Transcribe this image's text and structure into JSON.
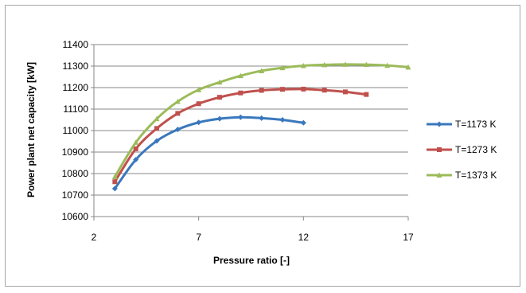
{
  "chart_data": {
    "type": "line",
    "title": "",
    "xlabel": "Pressure ratio [-]",
    "ylabel": "Power plant net capacity  [kW]",
    "xlim": [
      2,
      17
    ],
    "ylim": [
      10600,
      11400
    ],
    "xticks": [
      2,
      7,
      12,
      17
    ],
    "yticks": [
      10600,
      10700,
      10800,
      10900,
      11000,
      11100,
      11200,
      11300,
      11400
    ],
    "grid": "horizontal",
    "legend_position": "right",
    "series": [
      {
        "name": "T=1173 K",
        "color": "#3a78bd",
        "marker": "diamond",
        "x": [
          3,
          4,
          5,
          6,
          7,
          8,
          9,
          10,
          11,
          12
        ],
        "y": [
          10730,
          10865,
          10952,
          11005,
          11038,
          11055,
          11062,
          11058,
          11050,
          11036
        ]
      },
      {
        "name": "T=1273 K",
        "color": "#c0504d",
        "marker": "square",
        "x": [
          3,
          4,
          5,
          6,
          7,
          8,
          9,
          10,
          11,
          12,
          13,
          14,
          15
        ],
        "y": [
          10762,
          10915,
          11010,
          11080,
          11125,
          11155,
          11175,
          11187,
          11192,
          11193,
          11188,
          11180,
          11168
        ]
      },
      {
        "name": "T=1373 K",
        "color": "#9bbb59",
        "marker": "triangle",
        "x": [
          3,
          4,
          5,
          6,
          7,
          8,
          9,
          10,
          11,
          12,
          13,
          14,
          15,
          16,
          17
        ],
        "y": [
          10785,
          10945,
          11055,
          11135,
          11190,
          11225,
          11255,
          11278,
          11292,
          11302,
          11306,
          11308,
          11307,
          11303,
          11295
        ]
      }
    ]
  }
}
